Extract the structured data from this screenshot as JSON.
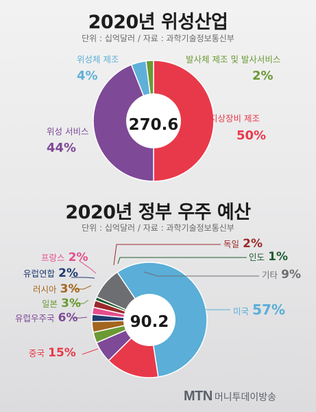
{
  "chart_data": [
    {
      "type": "pie",
      "title": "2020년 위성산업",
      "subtitle": "단위 : 십억달러 / 자료 : 과학기술정보통신부",
      "total": "270.6",
      "slices": [
        {
          "label": "지상장비 제조",
          "value": 50,
          "value_label": "50%",
          "color": "#e8394a"
        },
        {
          "label": "위성 서비스",
          "value": 44,
          "value_label": "44%",
          "color": "#7e4996"
        },
        {
          "label": "위성체 제조",
          "value": 4,
          "value_label": "4%",
          "color": "#5fb0d8"
        },
        {
          "label": "발사체 제조 및 발사서비스",
          "value": 2,
          "value_label": "2%",
          "color": "#6b9a35"
        }
      ]
    },
    {
      "type": "pie",
      "title": "2020년 정부 우주 예산",
      "subtitle": "단위 : 십억달러 / 자료 : 과학기술정보통신부",
      "total": "90.2",
      "slices": [
        {
          "label": "미국",
          "value": 57,
          "value_label": "57%",
          "color": "#5aaed8"
        },
        {
          "label": "중국",
          "value": 15,
          "value_label": "15%",
          "color": "#e8394a"
        },
        {
          "label": "유럽우주국",
          "value": 6,
          "value_label": "6%",
          "color": "#7e4996"
        },
        {
          "label": "일본",
          "value": 3,
          "value_label": "3%",
          "color": "#6b9a35"
        },
        {
          "label": "러시아",
          "value": 3,
          "value_label": "3%",
          "color": "#a3661f"
        },
        {
          "label": "유럽연합",
          "value": 2,
          "value_label": "2%",
          "color": "#1f3b6e"
        },
        {
          "label": "프랑스",
          "value": 2,
          "value_label": "2%",
          "color": "#e54d8c"
        },
        {
          "label": "독일",
          "value": 2,
          "value_label": "2%",
          "color": "#9b2a2a"
        },
        {
          "label": "인도",
          "value": 1,
          "value_label": "1%",
          "color": "#1e5c2e"
        },
        {
          "label": "기타",
          "value": 9,
          "value_label": "9%",
          "color": "#6d6e71"
        }
      ]
    }
  ],
  "footer": {
    "logo_mark": "MTN",
    "logo_text": "머니투데이방송"
  }
}
